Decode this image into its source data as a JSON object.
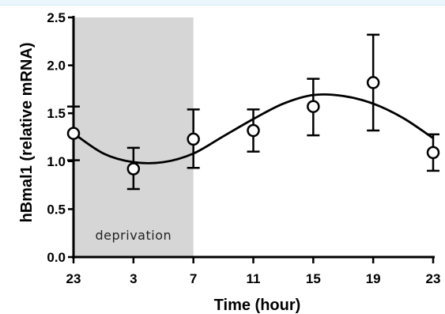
{
  "chart_data": {
    "type": "scatter",
    "xlabel": "Time (hour)",
    "ylabel": "hBmal1 (relative mRNA)",
    "x_ticks": [
      "23",
      "3",
      "7",
      "11",
      "15",
      "19",
      "23"
    ],
    "y_ticks": [
      "0.0",
      "0.5",
      "1.0",
      "1.5",
      "2.0",
      "2.5"
    ],
    "ylim": [
      0,
      2.5
    ],
    "x_positions_hours": [
      0,
      4,
      8,
      12,
      16,
      20,
      24
    ],
    "points": [
      {
        "x": 0,
        "y": 1.29,
        "err_up": 0.28,
        "err_down": 0.28
      },
      {
        "x": 4,
        "y": 0.92,
        "err_up": 0.22,
        "err_down": 0.21
      },
      {
        "x": 8,
        "y": 1.23,
        "err_up": 0.31,
        "err_down": 0.3
      },
      {
        "x": 12,
        "y": 1.32,
        "err_up": 0.22,
        "err_down": 0.22
      },
      {
        "x": 16,
        "y": 1.57,
        "err_up": 0.29,
        "err_down": 0.3
      },
      {
        "x": 20,
        "y": 1.82,
        "err_up": 0.5,
        "err_down": 0.5
      },
      {
        "x": 24,
        "y": 1.09,
        "err_up": 0.19,
        "err_down": 0.19
      }
    ],
    "fit_curve": {
      "x": [
        0,
        2,
        4,
        6,
        8,
        10,
        12,
        14,
        16,
        18,
        20,
        22,
        24
      ],
      "y": [
        1.29,
        1.08,
        0.99,
        0.99,
        1.08,
        1.26,
        1.44,
        1.6,
        1.69,
        1.68,
        1.6,
        1.45,
        1.24
      ]
    },
    "shaded_region": {
      "x_start": 0,
      "x_end": 8,
      "label": "deprivation"
    },
    "grid": false,
    "colors": {
      "shade": "#d6d6d6",
      "line": "#000000",
      "marker_fill": "#ffffff"
    }
  }
}
